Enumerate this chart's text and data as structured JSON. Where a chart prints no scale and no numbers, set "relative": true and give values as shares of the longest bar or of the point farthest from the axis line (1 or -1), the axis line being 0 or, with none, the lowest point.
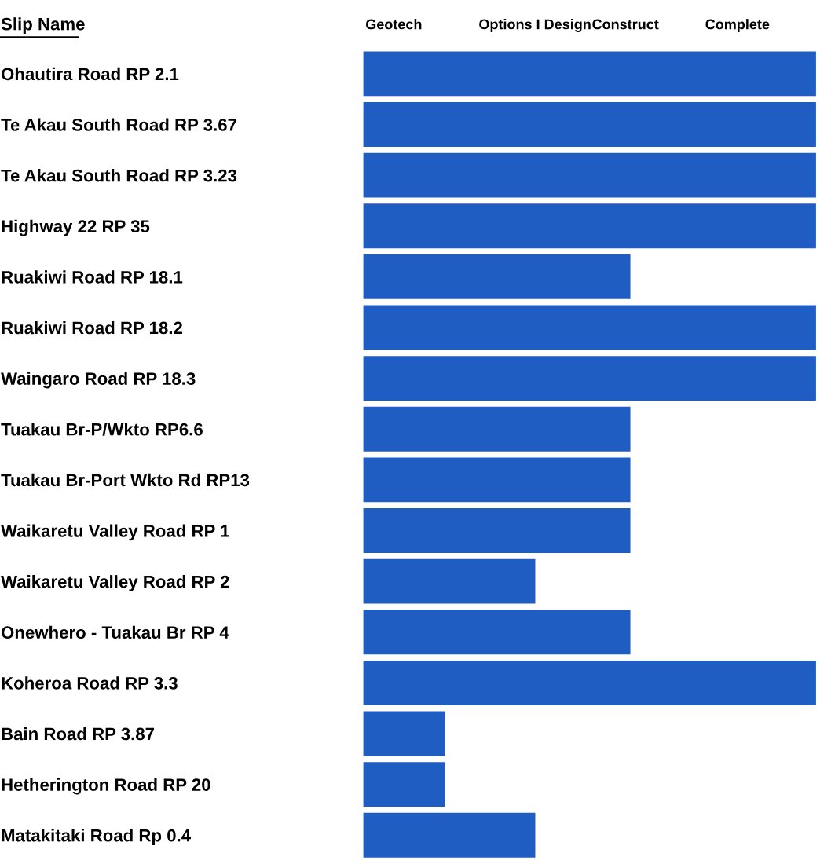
{
  "chart_data": {
    "type": "bar",
    "orientation": "horizontal",
    "relative": true,
    "color": "#1f5dc2",
    "ylabel": "Slip Name",
    "annotations": [
      "Geotech",
      "Options I Design",
      "Construct",
      "Complete"
    ],
    "categories": [
      "Ohautira Road RP 2.1",
      "Te Akau South Road RP 3.67",
      "Te Akau South Road RP 3.23",
      "Highway 22 RP 35",
      "Ruakiwi Road RP 18.1",
      "Ruakiwi Road RP 18.2",
      "Waingaro Road RP 18.3",
      "Tuakau Br-P/Wkto RP6.6",
      "Tuakau Br-Port Wkto Rd RP13",
      "Waikaretu Valley Road RP 1",
      "Waikaretu Valley Road RP 2",
      "Onewhero - Tuakau Br RP 4",
      "Koheroa Road RP 3.3",
      "Bain Road RP 3.87",
      "Hetherington Road RP 20",
      "Matakitaki Road Rp 0.4"
    ],
    "values": [
      1,
      1,
      1,
      1,
      0.59,
      1,
      1,
      0.59,
      0.59,
      0.59,
      0.38,
      0.59,
      1,
      0.18,
      0.18,
      0.38
    ]
  }
}
